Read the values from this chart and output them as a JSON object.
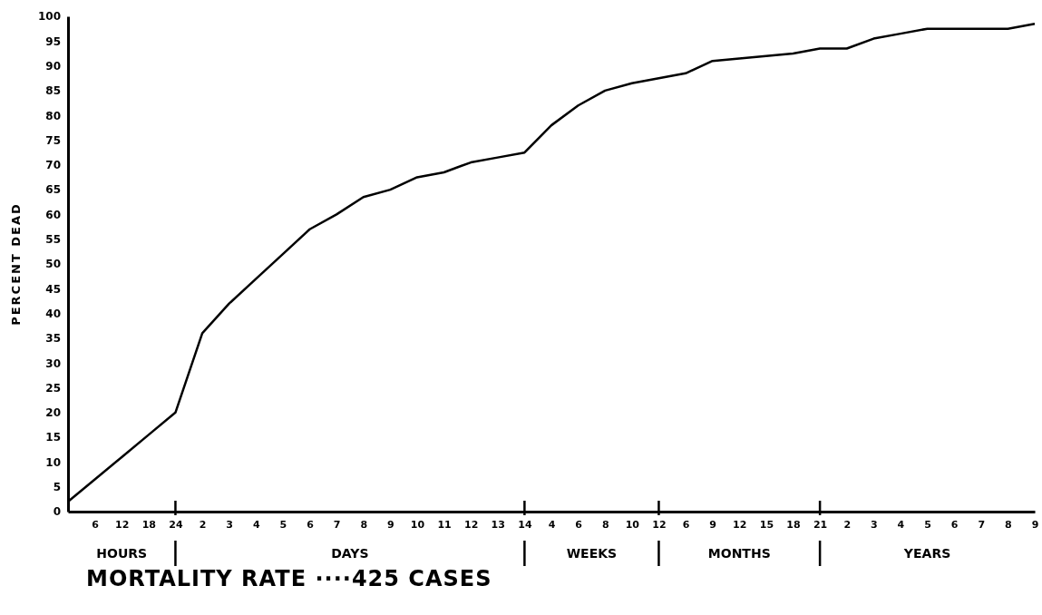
{
  "chart_data": {
    "type": "line",
    "title": "MORTALITY RATE ····425 CASES",
    "ylabel": "PERCENT DEAD",
    "categories": [
      null,
      "6",
      "12",
      "18",
      "24",
      "2",
      "3",
      "4",
      "5",
      "6",
      "7",
      "8",
      "9",
      "10",
      "11",
      "12",
      "13",
      "14",
      "4",
      "6",
      "8",
      "10",
      "12",
      "6",
      "9",
      "12",
      "15",
      "18",
      "21",
      "2",
      "3",
      "4",
      "5",
      "6",
      "7",
      "8",
      "9"
    ],
    "series": [
      {
        "color": "#000000",
        "values": [
          2,
          6.5,
          11,
          15.5,
          20,
          36,
          42,
          47,
          52,
          57,
          60,
          63.5,
          65,
          67.5,
          68.5,
          70.5,
          71.5,
          72.5,
          78,
          82,
          85,
          86.5,
          87.5,
          88.5,
          91,
          91.5,
          92,
          92.5,
          93.5,
          93.5,
          95.5,
          96.5,
          97.5,
          97.5,
          97.5,
          97.5,
          98.5
        ]
      }
    ],
    "ylim": [
      0,
      100
    ],
    "yticks": [
      0,
      5,
      10,
      15,
      20,
      25,
      30,
      35,
      40,
      45,
      50,
      55,
      60,
      65,
      70,
      75,
      80,
      85,
      90,
      95,
      100
    ],
    "annotations": [
      "HOURS",
      "DAYS",
      "WEEKS",
      "MONTHS",
      "YEARS"
    ],
    "grid": false,
    "marker": "none",
    "line_style": "solid"
  }
}
